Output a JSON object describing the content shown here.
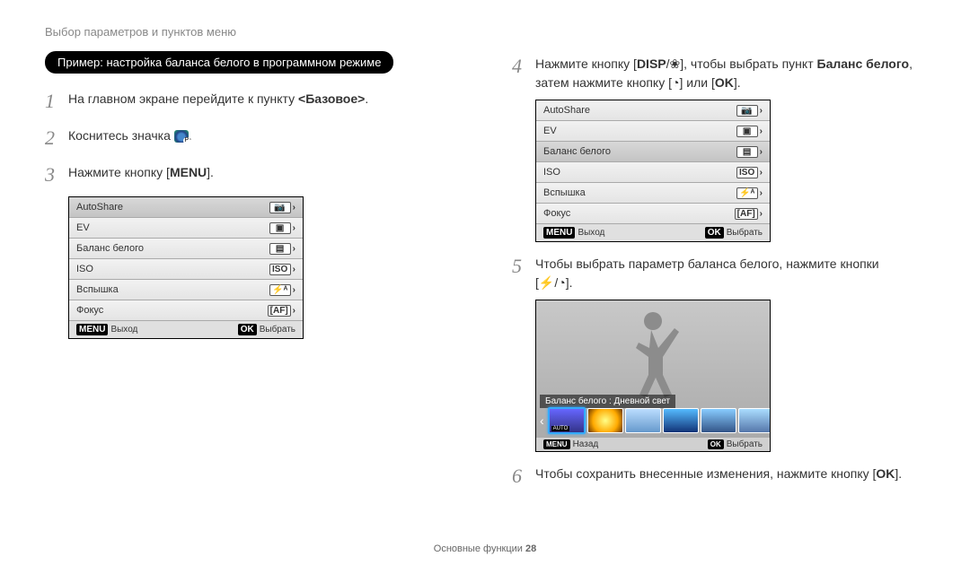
{
  "header": "Выбор параметров и пунктов меню",
  "blackbar": "Пример: настройка баланса белого в программном режиме",
  "left": {
    "step1_pre": "На главном экране перейдите к пункту ",
    "step1_bold": "<Базовое>",
    "step1_post": ".",
    "step2": "Коснитесь значка ",
    "step2_post": ".",
    "step3_pre": "Нажмите кнопку [",
    "step3_btn": "MENU",
    "step3_post": "]."
  },
  "right": {
    "step4_a": "Нажмите кнопку [",
    "step4_b": "DISP",
    "step4_c": "/",
    "step4_flower": "❀",
    "step4_d": "], чтобы выбрать пункт ",
    "step4_bold": "Баланс белого",
    "step4_e": ",",
    "step4_line2_a": "затем нажмите кнопку [",
    "step4_timer": "◔",
    "step4_line2_b": "] или [",
    "step4_ok": "OK",
    "step4_line2_c": "].",
    "step5_a": "Чтобы выбрать параметр баланса белого, нажмите кнопки",
    "step5_b": "[",
    "step5_flash": "⚡",
    "step5_c": "/",
    "step5_timer": "◔",
    "step5_d": "].",
    "step6_a": "Чтобы сохранить внесенные изменения, нажмите кнопку [",
    "step6_ok": "OK",
    "step6_b": "]."
  },
  "menu": {
    "rows": [
      {
        "label": "AutoShare",
        "icon": "📷",
        "sel": true
      },
      {
        "label": "EV",
        "icon": "▣"
      },
      {
        "label": "Баланс белого",
        "icon": "▤"
      },
      {
        "label": "ISO",
        "icon": "ISO"
      },
      {
        "label": "Вспышка",
        "icon": "⚡ᴬ"
      },
      {
        "label": "Фокус",
        "icon": "[AF]"
      }
    ],
    "footer_left_badge": "MENU",
    "footer_left": "Выход",
    "footer_right_badge": "OK",
    "footer_right": "Выбрать"
  },
  "menu2_sel_index": 2,
  "preview": {
    "label": "Баланс белого : Дневной свет",
    "wb_colors": [
      "linear-gradient(#66f,#338)",
      "radial-gradient(circle,#ff8,#fa0 60%,#630)",
      "linear-gradient(#bdf,#69c)",
      "linear-gradient(#5bf,#137)",
      "linear-gradient(#8cf,#358)",
      "linear-gradient(#adf,#57a)"
    ],
    "auto_label": "AUTO",
    "footer_left_badge": "MENU",
    "footer_left": "Назад",
    "footer_right_badge": "OK",
    "footer_right": "Выбрать"
  },
  "footer_label": "Основные функции  ",
  "footer_page": "28",
  "nums": {
    "n1": "1",
    "n2": "2",
    "n3": "3",
    "n4": "4",
    "n5": "5",
    "n6": "6"
  }
}
